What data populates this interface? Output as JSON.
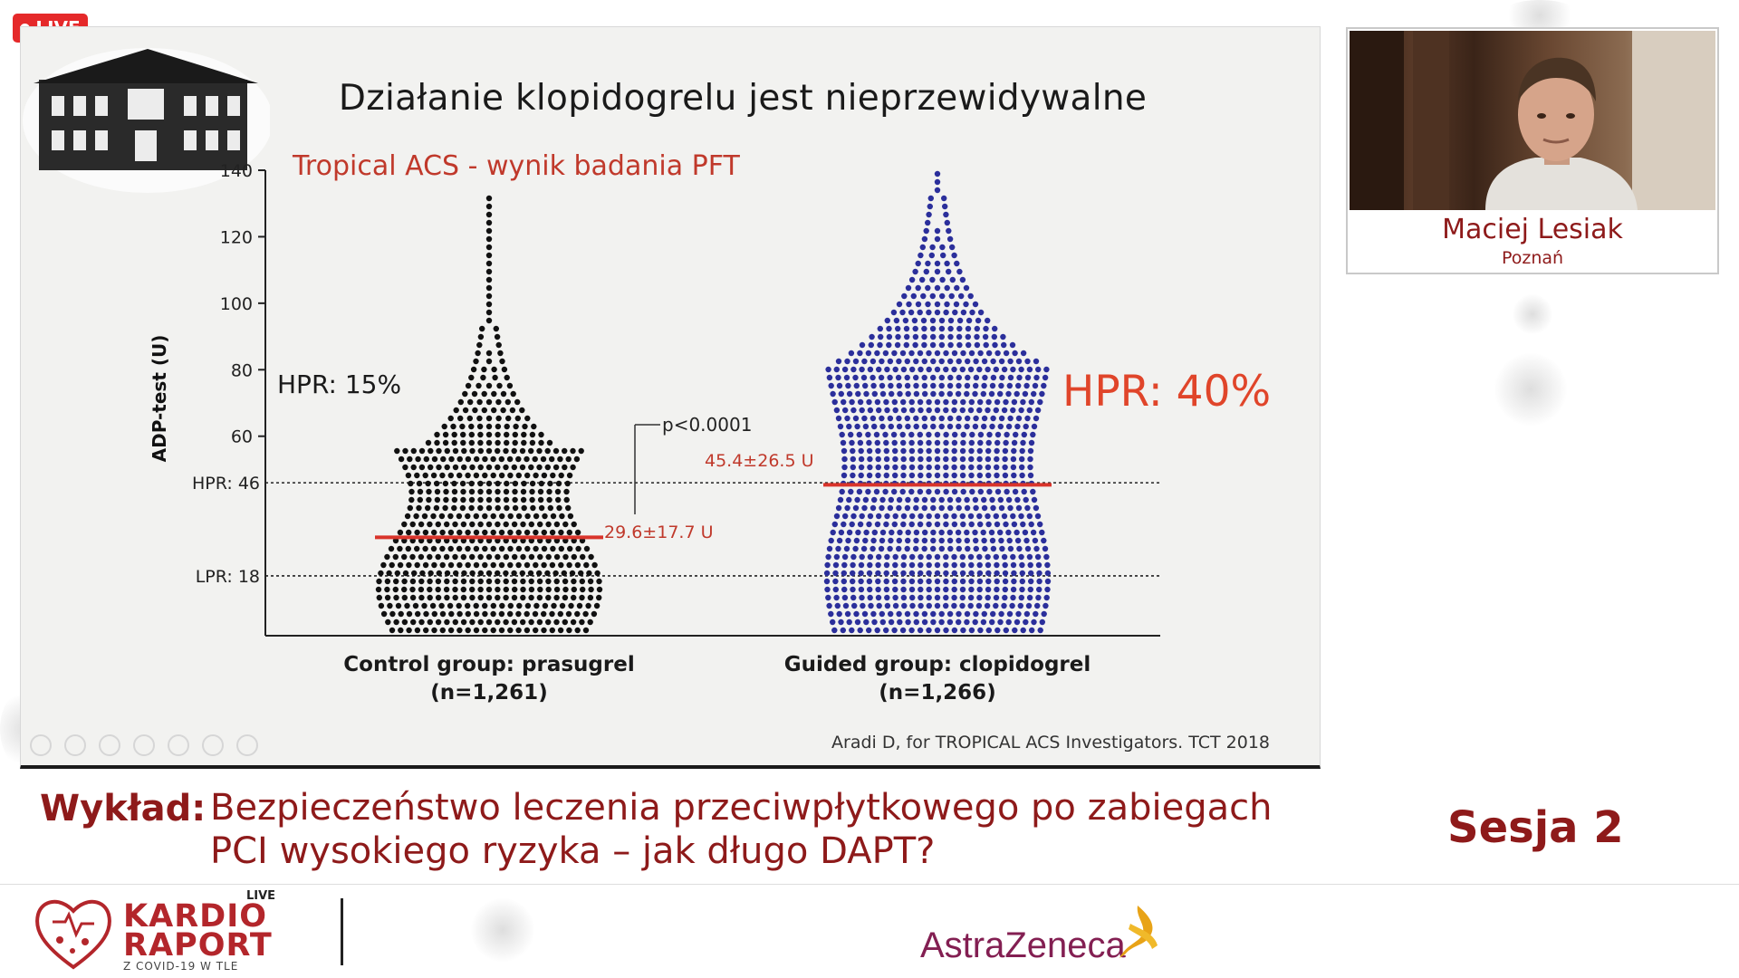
{
  "live_badge": "LIVE",
  "slide": {
    "title": "Działanie klopidogrelu jest nieprzewidywalne",
    "citation": "Aradi D, for TROPICAL ACS Investigators. TCT 2018"
  },
  "chart_data": {
    "type": "scatter",
    "title": "Tropical ACS - wynik badania PFT",
    "ylabel": "ADP-test (U)",
    "ylim": [
      0,
      140
    ],
    "yticks": [
      140,
      120,
      100,
      80,
      60
    ],
    "reference_lines": [
      {
        "label": "HPR: 46",
        "value": 46
      },
      {
        "label": "LPR: 18",
        "value": 18
      }
    ],
    "groups": [
      {
        "label": "Control group: prasugrel",
        "n": "(n=1,261)",
        "mean_label": "29.6±17.7 U",
        "mean": 29.6,
        "hpr_label": "HPR: 15%",
        "max": 133,
        "color": "#111111"
      },
      {
        "label": "Guided group: clopidogrel",
        "n": "(n=1,266)",
        "mean_label": "45.4±26.5 U",
        "mean": 45.4,
        "hpr_label": "HPR: 40%",
        "max": 140,
        "color": "#2b2f9b"
      }
    ],
    "p_value": "p<0.0001",
    "colors": {
      "mean_line": "#d9342b",
      "hpr_big": "#e0452a",
      "title": "#c0392b"
    }
  },
  "speaker": {
    "name": "Maciej Lesiak",
    "city": "Poznań"
  },
  "lecture": {
    "label": "Wykład:",
    "title": "Bezpieczeństwo leczenia przeciwpłytkowego po zabiegach PCI wysokiego ryzyka – jak długo DAPT?"
  },
  "session": "Sesja 2",
  "footer": {
    "brand_live": "LIVE",
    "brand_line1": "KARDIO",
    "brand_line2": "RAPORT",
    "brand_sub": "Z COVID-19 W TLE",
    "sponsor": "AstraZeneca"
  },
  "colors": {
    "brand_red": "#8e1a1a",
    "live_red": "#e5292a",
    "sponsor": "#831f52"
  }
}
